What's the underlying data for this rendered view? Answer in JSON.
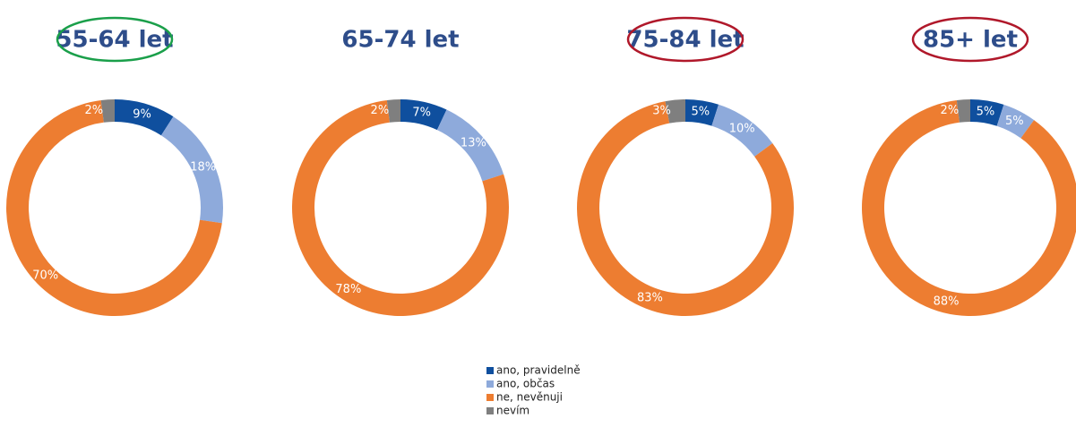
{
  "legend": {
    "categories": [
      "ano, pravidelně",
      "ano, občas",
      "ne, nevěnuji",
      "nevím"
    ],
    "colors": [
      "#0f4f9e",
      "#8eaadb",
      "#ed7d31",
      "#7f7f7f"
    ]
  },
  "chart_data": [
    {
      "type": "donut",
      "title": "55-64 let",
      "title_circle": "#1a9f4a",
      "values": [
        9,
        18,
        70,
        2
      ],
      "value_labels": [
        "9%",
        "18%",
        "70%",
        "2%"
      ]
    },
    {
      "type": "donut",
      "title": "65-74 let",
      "values": [
        7,
        13,
        78,
        2
      ],
      "value_labels": [
        "7%",
        "13%",
        "78%",
        "2%"
      ]
    },
    {
      "type": "donut",
      "title": "75-84 let",
      "title_circle": "#b0182a",
      "values": [
        5,
        10,
        83,
        3
      ],
      "value_labels": [
        "5%",
        "10%",
        "83%",
        "3%"
      ]
    },
    {
      "type": "donut",
      "title": "85+ let",
      "title_circle": "#b0182a",
      "values": [
        5,
        5,
        88,
        2
      ],
      "value_labels": [
        "5%",
        "5%",
        "88%",
        "2%"
      ]
    }
  ]
}
